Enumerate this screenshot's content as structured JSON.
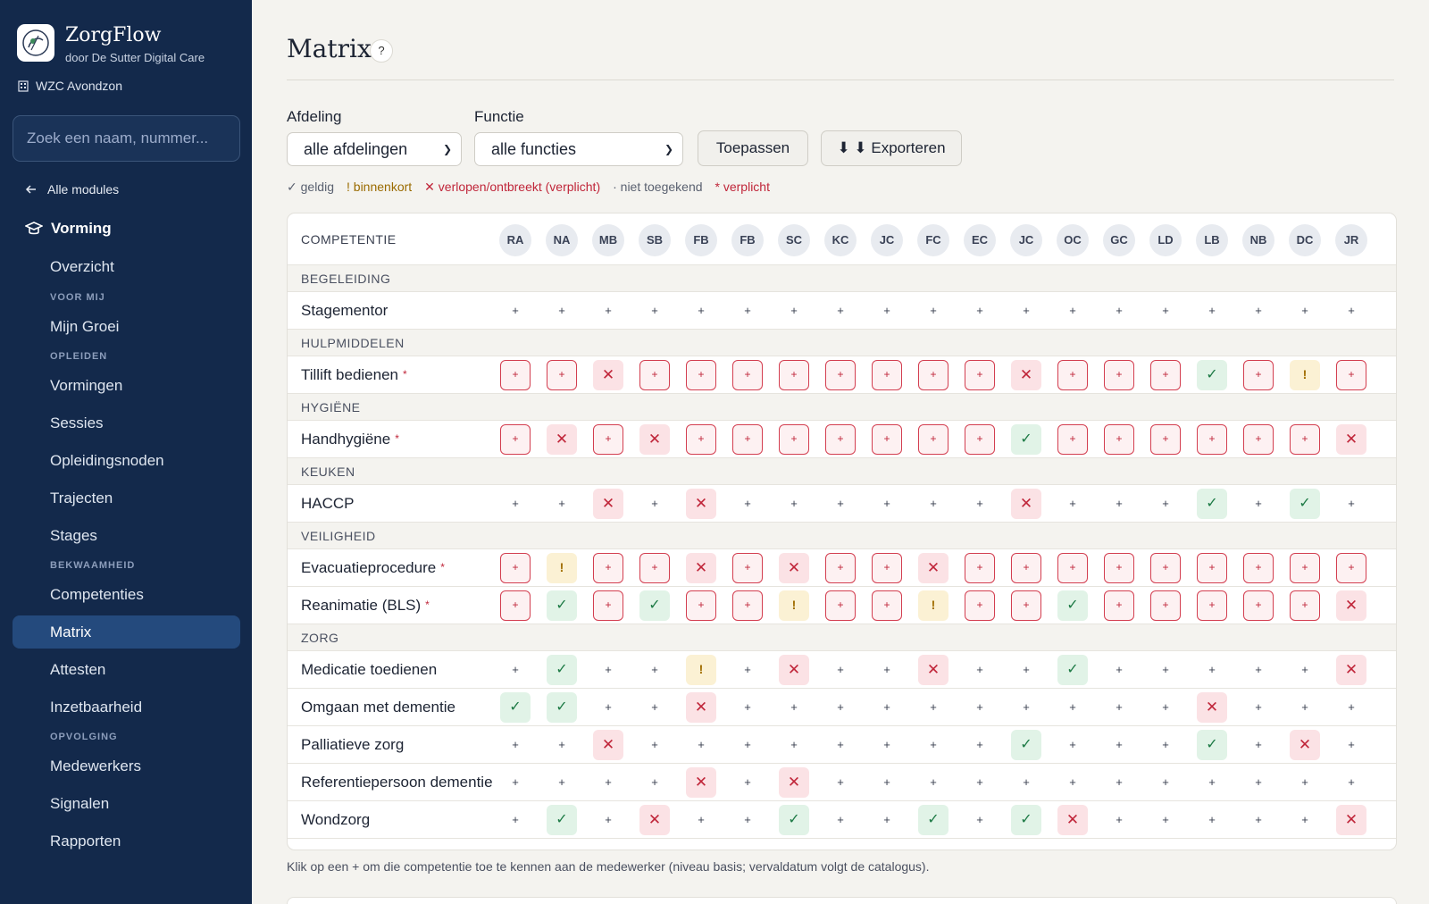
{
  "app": {
    "name": "ZorgFlow",
    "subtitle": "door De Sutter Digital Care",
    "org": "WZC Avondzon"
  },
  "sidebar": {
    "search_placeholder": "Zoek een naam, nummer...",
    "back_label": "Alle modules",
    "section": "Vorming",
    "items": [
      {
        "type": "item",
        "label": "Overzicht"
      },
      {
        "type": "group",
        "label": "VOOR MIJ"
      },
      {
        "type": "item",
        "label": "Mijn Groei"
      },
      {
        "type": "group",
        "label": "OPLEIDEN"
      },
      {
        "type": "item",
        "label": "Vormingen"
      },
      {
        "type": "item",
        "label": "Sessies"
      },
      {
        "type": "item",
        "label": "Opleidingsnoden"
      },
      {
        "type": "item",
        "label": "Trajecten"
      },
      {
        "type": "item",
        "label": "Stages"
      },
      {
        "type": "group",
        "label": "BEKWAAMHEID"
      },
      {
        "type": "item",
        "label": "Competenties"
      },
      {
        "type": "item",
        "label": "Matrix",
        "active": true
      },
      {
        "type": "item",
        "label": "Attesten"
      },
      {
        "type": "item",
        "label": "Inzetbaarheid"
      },
      {
        "type": "group",
        "label": "OPVOLGING"
      },
      {
        "type": "item",
        "label": "Medewerkers"
      },
      {
        "type": "item",
        "label": "Signalen"
      },
      {
        "type": "item",
        "label": "Rapporten"
      }
    ]
  },
  "page": {
    "title": "Matrix",
    "help": "?"
  },
  "filters": {
    "afdeling_label": "Afdeling",
    "afdeling_value": "alle afdelingen",
    "functie_label": "Functie",
    "functie_value": "alle functies",
    "apply_label": "Toepassen",
    "export_label": "⬇ ⬇ Exporteren"
  },
  "legend": {
    "valid": "✓ geldig",
    "soon": "! binnenkort",
    "expired": "✕ verlopen/ontbreekt (verplicht)",
    "not_assigned": "· niet toegekend",
    "required": "* verplicht"
  },
  "matrix": {
    "header_label": "COMPETENTIE",
    "employees": [
      "RA",
      "NA",
      "MB",
      "SB",
      "FB",
      "FB",
      "SC",
      "KC",
      "JC",
      "FC",
      "EC",
      "JC",
      "OC",
      "GC",
      "LD",
      "LB",
      "NB",
      "DC",
      "JR"
    ],
    "groups": [
      {
        "name": "BEGELEIDING",
        "rows": [
          {
            "name": "Stagementor",
            "required": false,
            "cells": [
              "+",
              "+",
              "+",
              "+",
              "+",
              "+",
              "+",
              "+",
              "+",
              "+",
              "+",
              "+",
              "+",
              "+",
              "+",
              "+",
              "+",
              "+",
              "+"
            ]
          }
        ]
      },
      {
        "name": "HULPMIDDELEN",
        "rows": [
          {
            "name": "Tillift bedienen",
            "required": true,
            "cells": [
              "R",
              "R",
              "x",
              "R",
              "R",
              "R",
              "R",
              "R",
              "R",
              "R",
              "R",
              "x",
              "R",
              "R",
              "R",
              "v",
              "R",
              "!",
              "R"
            ]
          }
        ]
      },
      {
        "name": "HYGIËNE",
        "rows": [
          {
            "name": "Handhygiëne",
            "required": true,
            "cells": [
              "R",
              "x",
              "R",
              "x",
              "R",
              "R",
              "R",
              "R",
              "R",
              "R",
              "R",
              "v",
              "R",
              "R",
              "R",
              "R",
              "R",
              "R",
              "x"
            ]
          }
        ]
      },
      {
        "name": "KEUKEN",
        "rows": [
          {
            "name": "HACCP",
            "required": false,
            "cells": [
              "+",
              "+",
              "x",
              "+",
              "x",
              "+",
              "+",
              "+",
              "+",
              "+",
              "+",
              "x",
              "+",
              "+",
              "+",
              "v",
              "+",
              "v",
              "+"
            ]
          }
        ]
      },
      {
        "name": "VEILIGHEID",
        "rows": [
          {
            "name": "Evacuatieprocedure",
            "required": true,
            "cells": [
              "R",
              "!",
              "R",
              "R",
              "x",
              "R",
              "x",
              "R",
              "R",
              "x",
              "R",
              "R",
              "R",
              "R",
              "R",
              "R",
              "R",
              "R",
              "R"
            ]
          },
          {
            "name": "Reanimatie (BLS)",
            "required": true,
            "cells": [
              "R",
              "v",
              "R",
              "v",
              "R",
              "R",
              "!",
              "R",
              "R",
              "!",
              "R",
              "R",
              "v",
              "R",
              "R",
              "R",
              "R",
              "R",
              "x"
            ]
          }
        ]
      },
      {
        "name": "ZORG",
        "rows": [
          {
            "name": "Medicatie toedienen",
            "required": false,
            "cells": [
              "+",
              "v",
              "+",
              "+",
              "!",
              "+",
              "x",
              "+",
              "+",
              "x",
              "+",
              "+",
              "v",
              "+",
              "+",
              "+",
              "+",
              "+",
              "x"
            ]
          },
          {
            "name": "Omgaan met dementie",
            "required": false,
            "cells": [
              "v",
              "v",
              "+",
              "+",
              "x",
              "+",
              "+",
              "+",
              "+",
              "+",
              "+",
              "+",
              "+",
              "+",
              "+",
              "x",
              "+",
              "+",
              "+"
            ]
          },
          {
            "name": "Palliatieve zorg",
            "required": false,
            "cells": [
              "+",
              "+",
              "x",
              "+",
              "+",
              "+",
              "+",
              "+",
              "+",
              "+",
              "+",
              "v",
              "+",
              "+",
              "+",
              "v",
              "+",
              "x",
              "+"
            ]
          },
          {
            "name": "Referentiepersoon dementie",
            "required": false,
            "cells": [
              "+",
              "+",
              "+",
              "+",
              "x",
              "+",
              "x",
              "+",
              "+",
              "+",
              "+",
              "+",
              "+",
              "+",
              "+",
              "+",
              "+",
              "+",
              "+"
            ]
          },
          {
            "name": "Wondzorg",
            "required": false,
            "cells": [
              "+",
              "v",
              "+",
              "x",
              "+",
              "+",
              "v",
              "+",
              "+",
              "v",
              "+",
              "v",
              "x",
              "+",
              "+",
              "+",
              "+",
              "+",
              "x"
            ]
          }
        ]
      }
    ]
  },
  "footnote": "Klik op een + om die competentie toe te kennen aan de medewerker (niveau basis; vervaldatum volgt de catalogus).",
  "colors": {
    "sidebar_bg": "#13294b",
    "active_bg": "#244a7d",
    "required_red": "#c0263a",
    "valid_green": "#1d7a45",
    "soon_amber": "#a06d00"
  }
}
